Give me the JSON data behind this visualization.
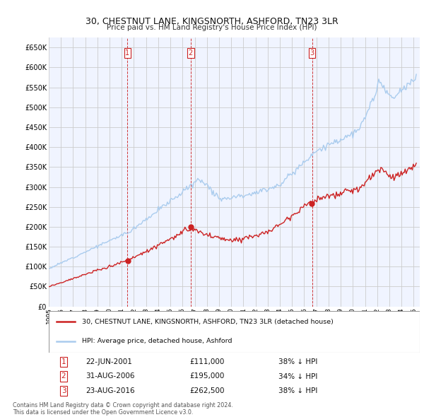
{
  "title": "30, CHESTNUT LANE, KINGSNORTH, ASHFORD, TN23 3LR",
  "subtitle": "Price paid vs. HM Land Registry's House Price Index (HPI)",
  "x_start": 1995.0,
  "x_end": 2025.5,
  "y_min": 0,
  "y_max": 675000,
  "y_ticks": [
    0,
    50000,
    100000,
    150000,
    200000,
    250000,
    300000,
    350000,
    400000,
    450000,
    500000,
    550000,
    600000,
    650000
  ],
  "hpi_color": "#aaccee",
  "price_color": "#cc2222",
  "vline_color": "#cc2222",
  "grid_color": "#cccccc",
  "bg_color": "#f0f4ff",
  "sale_events": [
    {
      "label": "1",
      "date": "22-JUN-2001",
      "price": 111000,
      "hpi_note": "38% ↓ HPI",
      "x": 2001.47
    },
    {
      "label": "2",
      "date": "31-AUG-2006",
      "price": 195000,
      "hpi_note": "34% ↓ HPI",
      "x": 2006.66
    },
    {
      "label": "3",
      "date": "23-AUG-2016",
      "price": 262500,
      "hpi_note": "38% ↓ HPI",
      "x": 2016.65
    }
  ],
  "legend_entries": [
    "30, CHESTNUT LANE, KINGSNORTH, ASHFORD, TN23 3LR (detached house)",
    "HPI: Average price, detached house, Ashford"
  ],
  "footnote": "Contains HM Land Registry data © Crown copyright and database right 2024.\nThis data is licensed under the Open Government Licence v3.0.",
  "x_tick_years": [
    1995,
    1996,
    1997,
    1998,
    1999,
    2000,
    2001,
    2002,
    2003,
    2004,
    2005,
    2006,
    2007,
    2008,
    2009,
    2010,
    2011,
    2012,
    2013,
    2014,
    2015,
    2016,
    2017,
    2018,
    2019,
    2020,
    2021,
    2022,
    2023,
    2024,
    2025
  ],
  "rows": [
    [
      "1",
      "22-JUN-2001",
      "£111,000",
      "38% ↓ HPI"
    ],
    [
      "2",
      "31-AUG-2006",
      "£195,000",
      "34% ↓ HPI"
    ],
    [
      "3",
      "23-AUG-2016",
      "£262,500",
      "38% ↓ HPI"
    ]
  ]
}
